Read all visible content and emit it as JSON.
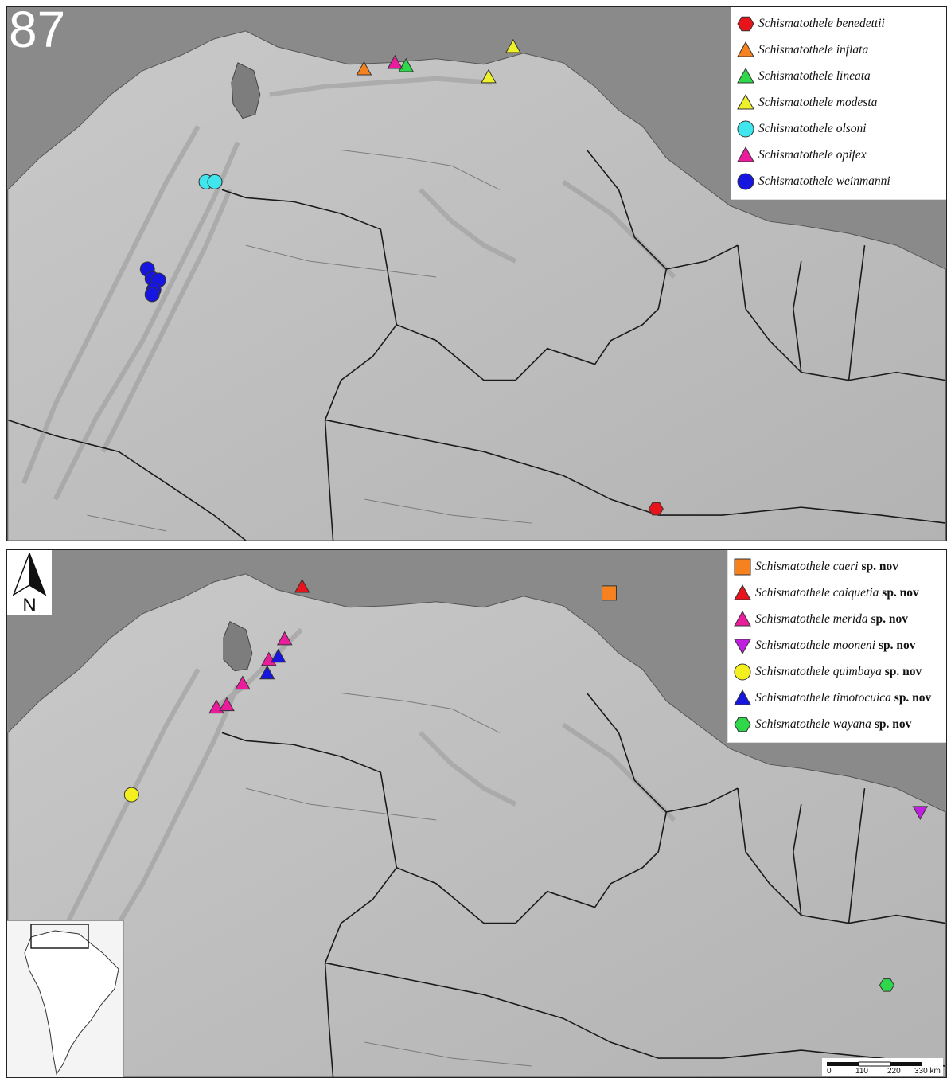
{
  "figure_number": "87",
  "north_label": "N",
  "legend_top": [
    {
      "species": "Schismatothele benedettii",
      "suffix": "",
      "shape": "hexagon",
      "color": "#e8141b"
    },
    {
      "species": "Schismatothele inflata",
      "suffix": "",
      "shape": "triangle-up",
      "color": "#f5821f"
    },
    {
      "species": "Schismatothele lineata",
      "suffix": "",
      "shape": "triangle-up",
      "color": "#2ed84a"
    },
    {
      "species": "Schismatothele modesta",
      "suffix": "",
      "shape": "triangle-up",
      "color": "#eef02a"
    },
    {
      "species": "Schismatothele olsoni",
      "suffix": "",
      "shape": "circle",
      "color": "#3fe6ee"
    },
    {
      "species": "Schismatothele opifex",
      "suffix": "",
      "shape": "triangle-up",
      "color": "#ea1c9d"
    },
    {
      "species": "Schismatothele weinmanni",
      "suffix": "",
      "shape": "circle",
      "color": "#1616e0"
    }
  ],
  "legend_bottom": [
    {
      "species": "Schismatothele caeri",
      "suffix": "sp. nov",
      "shape": "square",
      "color": "#f5821f"
    },
    {
      "species": "Schismatothele caiquetia",
      "suffix": "sp. nov",
      "shape": "triangle-up",
      "color": "#e8141b"
    },
    {
      "species": "Schismatothele merida",
      "suffix": "sp. nov",
      "shape": "triangle-up",
      "color": "#ea1c9d"
    },
    {
      "species": "Schismatothele mooneni",
      "suffix": "sp. nov",
      "shape": "triangle-down",
      "color": "#c01fe0"
    },
    {
      "species": "Schismatothele quimbaya",
      "suffix": "sp. nov",
      "shape": "circle",
      "color": "#f4ef1e"
    },
    {
      "species": "Schismatothele timotocuica",
      "suffix": "sp. nov",
      "shape": "triangle-up",
      "color": "#1616e0"
    },
    {
      "species": "Schismatothele wayana",
      "suffix": "sp. nov",
      "shape": "hexagon",
      "color": "#2ed84a"
    }
  ],
  "scale_bar": {
    "ticks": [
      "0",
      "110",
      "220",
      "330 km"
    ]
  }
}
